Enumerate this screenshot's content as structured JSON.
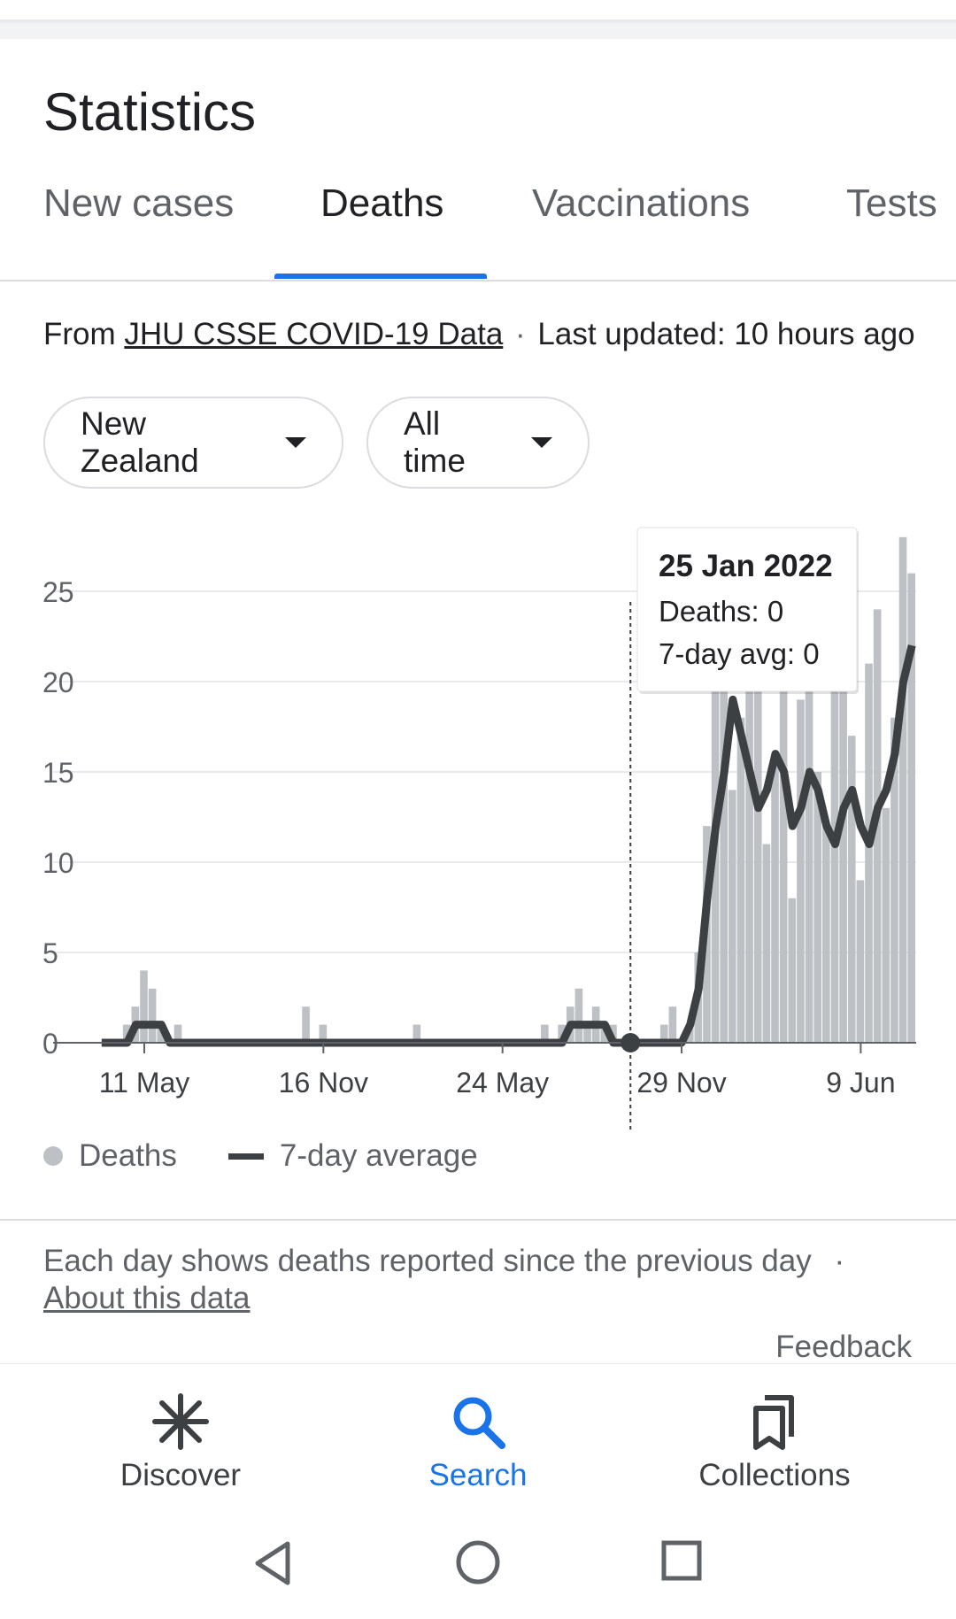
{
  "page": {
    "title": "Statistics"
  },
  "tabs": [
    {
      "label": "New cases",
      "active": false
    },
    {
      "label": "Deaths",
      "active": true
    },
    {
      "label": "Vaccinations",
      "active": false
    },
    {
      "label": "Tests",
      "active": false
    }
  ],
  "source": {
    "prefix": "From",
    "link_text": "JHU CSSE COVID-19 Data",
    "separator": "·",
    "updated": "Last updated: 10 hours ago"
  },
  "filters": {
    "region": "New Zealand",
    "range": "All time"
  },
  "tooltip": {
    "date": "25 Jan 2022",
    "deaths": "Deaths: 0",
    "avg": "7-day avg: 0"
  },
  "legend": {
    "series1": "Deaths",
    "series2": "7-day average"
  },
  "note": {
    "text": "Each day shows deaths reported since the previous day",
    "separator": "·",
    "link": "About this data"
  },
  "feedback": "Feedback",
  "bottom_nav": {
    "discover": "Discover",
    "search": "Search",
    "collections": "Collections"
  },
  "colors": {
    "accent": "#1a73e8",
    "bars": "#bdc1c6",
    "avg_line": "#3c4043"
  },
  "icons": {
    "discover": "asterisk-icon",
    "search": "search-icon",
    "collections": "collections-icon",
    "back": "back-triangle-icon",
    "home": "home-circle-icon",
    "recents": "recents-square-icon"
  },
  "chart_data": {
    "type": "bar",
    "x_tick_labels": [
      "11 May",
      "16 Nov",
      "24 May",
      "29 Nov",
      "9 Jun"
    ],
    "y_tick_labels": [
      "0",
      "5",
      "10",
      "15",
      "20",
      "25"
    ],
    "ylim": [
      0,
      28
    ],
    "grid": true,
    "highlight_index": 62,
    "series": [
      {
        "name": "Deaths",
        "values": [
          0,
          0,
          0,
          1,
          2,
          4,
          3,
          1,
          0,
          1,
          0,
          0,
          0,
          0,
          0,
          0,
          0,
          0,
          0,
          0,
          0,
          0,
          0,
          0,
          2,
          0,
          1,
          0,
          0,
          0,
          0,
          0,
          0,
          0,
          0,
          0,
          0,
          1,
          0,
          0,
          0,
          0,
          0,
          0,
          0,
          0,
          0,
          0,
          0,
          0,
          0,
          0,
          1,
          0,
          1,
          2,
          3,
          1,
          2,
          1,
          1,
          0,
          0,
          0,
          0,
          0,
          1,
          2,
          0,
          1,
          5,
          12,
          22,
          25,
          14,
          18,
          27,
          20,
          11,
          16,
          22,
          8,
          19,
          25,
          15,
          12,
          20,
          23,
          17,
          9,
          21,
          24,
          13,
          18,
          28,
          26
        ]
      },
      {
        "name": "7-day average",
        "values": [
          0,
          0,
          0,
          0,
          1,
          1,
          1,
          1,
          0,
          0,
          0,
          0,
          0,
          0,
          0,
          0,
          0,
          0,
          0,
          0,
          0,
          0,
          0,
          0,
          0,
          0,
          0,
          0,
          0,
          0,
          0,
          0,
          0,
          0,
          0,
          0,
          0,
          0,
          0,
          0,
          0,
          0,
          0,
          0,
          0,
          0,
          0,
          0,
          0,
          0,
          0,
          0,
          0,
          0,
          0,
          1,
          1,
          1,
          1,
          1,
          0,
          0,
          0,
          0,
          0,
          0,
          0,
          0,
          0,
          1,
          3,
          8,
          12,
          15,
          19,
          17,
          15,
          13,
          14,
          16,
          15,
          12,
          13,
          15,
          14,
          12,
          11,
          13,
          14,
          12,
          11,
          13,
          14,
          16,
          20,
          22
        ]
      }
    ]
  }
}
